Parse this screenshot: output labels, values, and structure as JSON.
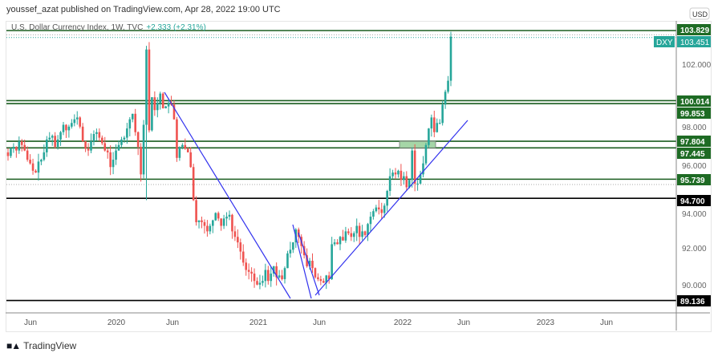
{
  "header": {
    "publish_line": "youssef_azat published on TradingView.com, Apr 28, 2022 19:00 UTC"
  },
  "legend": {
    "symbol_title": "U.S. Dollar Currency Index, 1W, TVC",
    "change": "+2.333 (+2.31%)"
  },
  "price_axis": {
    "currency_badge": "USD",
    "symbol_badge": "DXY",
    "last_price": "103.451",
    "ticks": [
      "102.000",
      "94.000",
      "92.000",
      "90.000"
    ],
    "partially_hidden_ticks": [
      "98.000",
      "96.000"
    ]
  },
  "levels": [
    {
      "value": 103.829,
      "label": "103.829",
      "color": "#1b5e20"
    },
    {
      "value": 100.014,
      "label": "100.014",
      "color": "#1b5e20"
    },
    {
      "value": 99.853,
      "label": "99.853",
      "color": "#1b5e20"
    },
    {
      "value": 97.804,
      "label": "97.804",
      "color": "#1b5e20"
    },
    {
      "value": 97.445,
      "label": "97.445",
      "color": "#1b5e20"
    },
    {
      "value": 95.739,
      "label": "95.739",
      "color": "#1b5e20"
    },
    {
      "value": 94.7,
      "label": "94.700",
      "color": "#000000"
    },
    {
      "value": 89.136,
      "label": "89.136",
      "color": "#000000"
    }
  ],
  "time_axis": {
    "labels": [
      "Jun",
      "2020",
      "Jun",
      "2021",
      "Jun",
      "2022",
      "Jun",
      "2023",
      "Jun"
    ]
  },
  "footer": {
    "brand": "TradingView",
    "logo": "17"
  },
  "colors": {
    "up": "#26a69a",
    "down": "#ef5350",
    "level": "#1b5e20",
    "trendline": "#3333ee",
    "zone": "#a5d6a7"
  },
  "chart_data": {
    "type": "candlestick",
    "title": "U.S. Dollar Currency Index, 1W, TVC",
    "interval": "1W",
    "start": "2019-04",
    "ylim": [
      88.6,
      104.2
    ],
    "closes": [
      97.0,
      97.4,
      97.5,
      97.3,
      97.8,
      97.6,
      97.3,
      96.8,
      96.6,
      96.2,
      96.1,
      96.7,
      96.8,
      97.2,
      97.9,
      98.0,
      98.1,
      97.5,
      97.9,
      98.3,
      98.7,
      98.4,
      98.6,
      98.8,
      99.0,
      99.1,
      98.6,
      97.8,
      97.4,
      97.3,
      97.8,
      98.2,
      98.3,
      98.0,
      97.7,
      97.3,
      97.2,
      96.4,
      96.8,
      97.3,
      97.6,
      97.9,
      98.0,
      98.5,
      99.0,
      99.3,
      98.3,
      97.5,
      96.0,
      98.7,
      102.8,
      98.4,
      100.2,
      99.5,
      99.9,
      100.4,
      99.6,
      99.7,
      99.9,
      99.8,
      99.0,
      96.9,
      97.5,
      97.6,
      97.4,
      97.2,
      96.4,
      94.6,
      93.4,
      93.5,
      93.4,
      93.2,
      92.9,
      93.2,
      93.5,
      93.9,
      93.6,
      93.2,
      93.6,
      93.7,
      93.8,
      92.9,
      92.6,
      92.3,
      91.8,
      91.2,
      90.8,
      90.7,
      90.6,
      90.2,
      90.0,
      90.1,
      90.2,
      90.8,
      90.2,
      90.6,
      91.0,
      90.4,
      90.5,
      90.3,
      90.9,
      91.7,
      91.9,
      92.3,
      93.0,
      92.6,
      92.1,
      91.6,
      91.0,
      91.3,
      90.9,
      90.4,
      90.3,
      90.2,
      90.1,
      90.5,
      90.3,
      92.2,
      92.3,
      92.2,
      92.6,
      92.4,
      92.9,
      92.8,
      92.6,
      92.8,
      93.2,
      92.6,
      92.9,
      92.7,
      93.3,
      93.7,
      94.0,
      94.2,
      94.1,
      93.9,
      94.3,
      95.1,
      95.9,
      96.1,
      96.0,
      96.2,
      95.7,
      95.9,
      95.3,
      95.7,
      97.3,
      95.5,
      95.5,
      96.0,
      96.6,
      97.6,
      98.5,
      99.1,
      98.3,
      98.8,
      98.8,
      99.8,
      100.5,
      101.1,
      103.5
    ]
  }
}
